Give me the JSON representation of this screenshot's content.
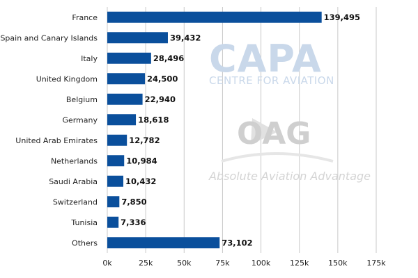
{
  "chart_data": {
    "type": "bar",
    "orientation": "horizontal",
    "categories": [
      "France",
      "Spain and Canary Islands",
      "Italy",
      "United Kingdom",
      "Belgium",
      "Germany",
      "United Arab Emirates",
      "Netherlands",
      "Saudi Arabia",
      "Switzerland",
      "Tunisia",
      "Others"
    ],
    "values": [
      139495,
      39432,
      28496,
      24500,
      22940,
      18618,
      12782,
      10984,
      10432,
      7850,
      7336,
      73102
    ],
    "value_labels": [
      "139,495",
      "39,432",
      "28,496",
      "24,500",
      "22,940",
      "18,618",
      "12,782",
      "10,984",
      "10,432",
      "7,850",
      "7,336",
      "73,102"
    ],
    "x_ticks": [
      "0k",
      "25k",
      "50k",
      "75k",
      "100k",
      "125k",
      "150k",
      "175k"
    ],
    "xlim": [
      0,
      175000
    ],
    "grid": true,
    "title": "",
    "xlabel": "",
    "ylabel": "",
    "bar_color": "#0a4f9c"
  },
  "watermarks": {
    "capa": "CAPA",
    "capa_sub": "CENTRE FOR AVIATION",
    "oag": "OAG",
    "tagline": "Absolute Aviation Advantage"
  }
}
